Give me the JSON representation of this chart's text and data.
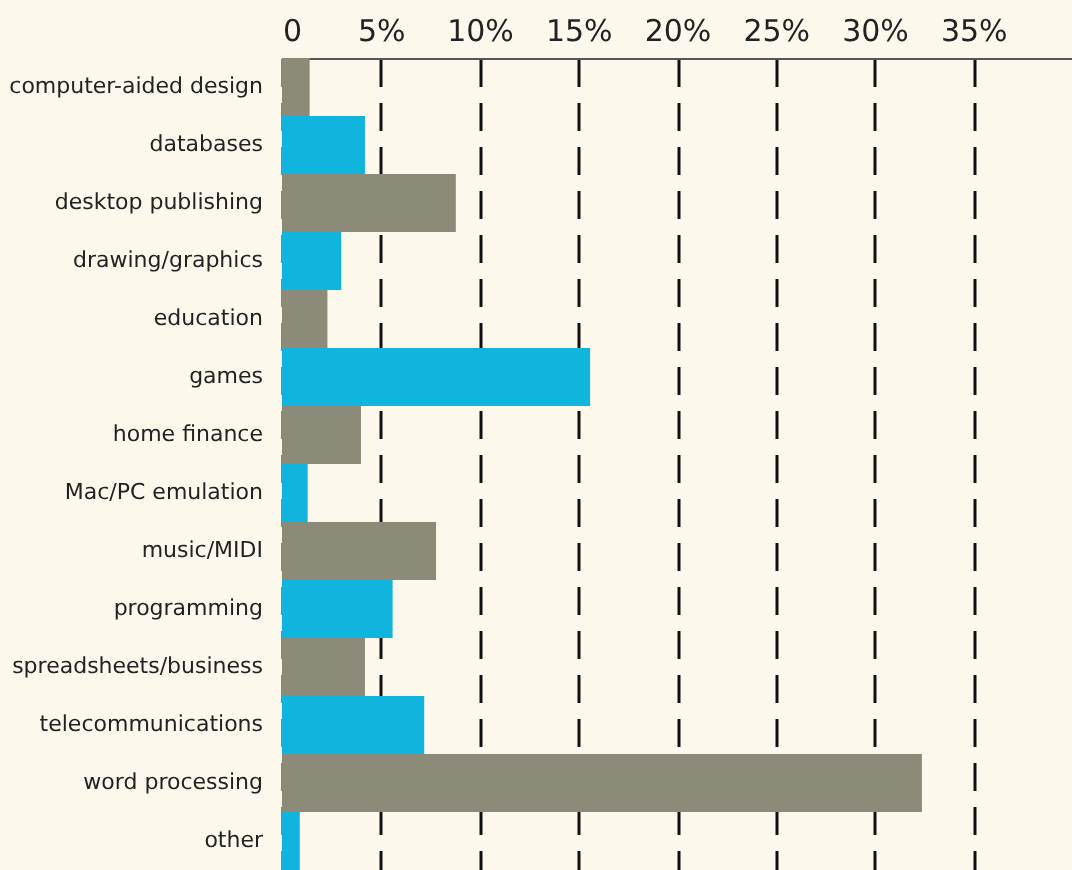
{
  "chart_data": {
    "type": "bar",
    "orientation": "horizontal",
    "categories": [
      "computer-aided design",
      "databases",
      "desktop publishing",
      "drawing/graphics",
      "education",
      "games",
      "home finance",
      "Mac/PC emulation",
      "music/MIDI",
      "programming",
      "spreadsheets/business",
      "telecommunications",
      "word processing",
      "other"
    ],
    "values": [
      1.4,
      4.2,
      8.8,
      3.0,
      2.3,
      15.6,
      4.0,
      1.3,
      7.8,
      5.6,
      4.2,
      7.2,
      32.4,
      0.9
    ],
    "colors": [
      "#8c8a78",
      "#10b4dc",
      "#8c8a78",
      "#10b4dc",
      "#8c8a78",
      "#10b4dc",
      "#8c8a78",
      "#10b4dc",
      "#8c8a78",
      "#10b4dc",
      "#8c8a78",
      "#10b4dc",
      "#8c8a78",
      "#10b4dc"
    ],
    "xlim": [
      0,
      40
    ],
    "xticks": [
      0,
      {
        "value": 5,
        "label": "5%"
      },
      {
        "value": 10,
        "label": "10%"
      },
      {
        "value": 15,
        "label": "15%"
      },
      {
        "value": 20,
        "label": "20%"
      },
      {
        "value": 25,
        "label": "25%"
      },
      {
        "value": 30,
        "label": "30%"
      },
      {
        "value": 35,
        "label": "35%"
      }
    ],
    "grid": "x",
    "legend": false
  }
}
